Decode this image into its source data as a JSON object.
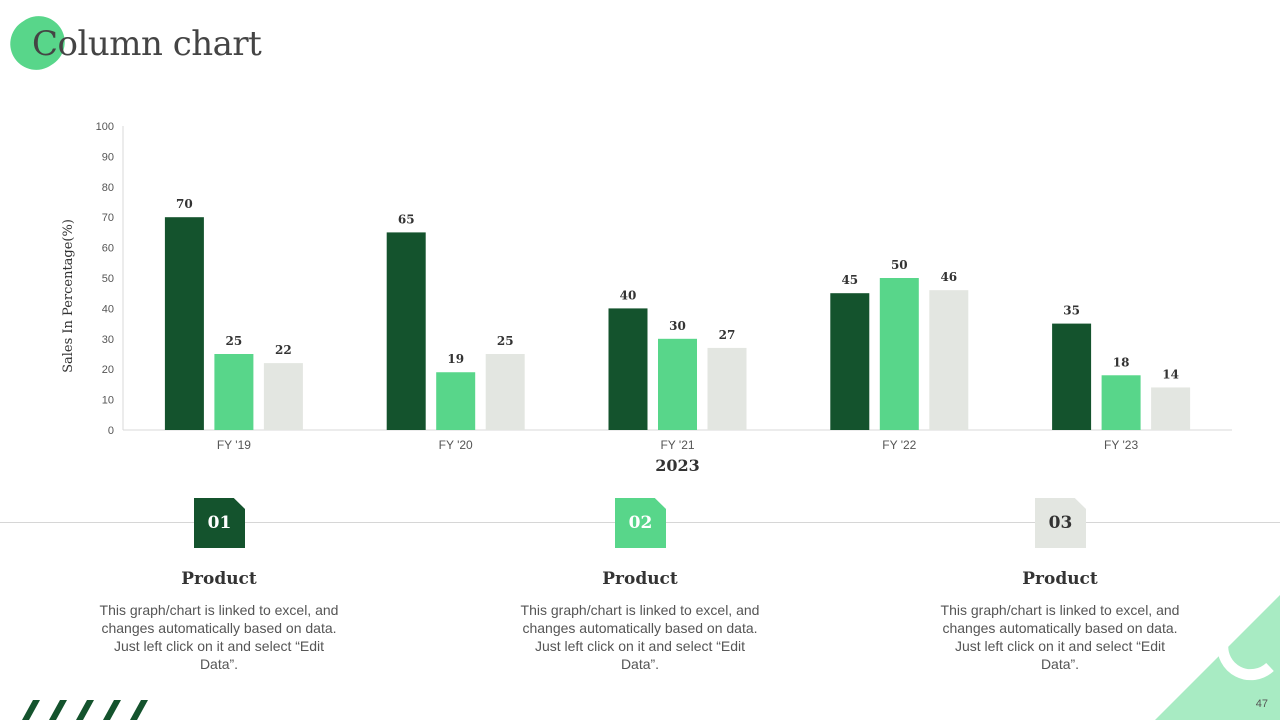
{
  "page": {
    "title": "Column chart",
    "page_number": "47"
  },
  "colors": {
    "dark_green": "#14532d",
    "light_green": "#58d68a",
    "light_gray": "#e3e6e1",
    "pale_green": "#a8ebc3"
  },
  "chart_data": {
    "type": "bar",
    "categories": [
      "FY '19",
      "FY '20",
      "FY '21",
      "FY '22",
      "FY '23"
    ],
    "series": [
      {
        "values": [
          70,
          65,
          40,
          45,
          35
        ],
        "color": "#14532d"
      },
      {
        "values": [
          25,
          19,
          30,
          50,
          18
        ],
        "color": "#58d68a"
      },
      {
        "values": [
          22,
          25,
          27,
          46,
          14
        ],
        "color": "#e3e6e1"
      }
    ],
    "xlabel": "2023",
    "ylabel": "Sales In Percentage(%)",
    "ylim": [
      0,
      100
    ],
    "yticks": [
      0,
      10,
      20,
      30,
      40,
      50,
      60,
      70,
      80,
      90,
      100
    ],
    "grid": false,
    "data_labels": true
  },
  "products": [
    {
      "number": "01",
      "title": "Product",
      "description": "This graph/chart is linked to excel, and changes automatically based on data. Just left click on it and select “Edit Data”."
    },
    {
      "number": "02",
      "title": "Product",
      "description": "This graph/chart is linked to excel, and changes automatically based on data. Just left click on it and select “Edit Data”."
    },
    {
      "number": "03",
      "title": "Product",
      "description": "This graph/chart is linked to excel, and changes automatically based on data. Just left click on it and select “Edit Data”."
    }
  ]
}
